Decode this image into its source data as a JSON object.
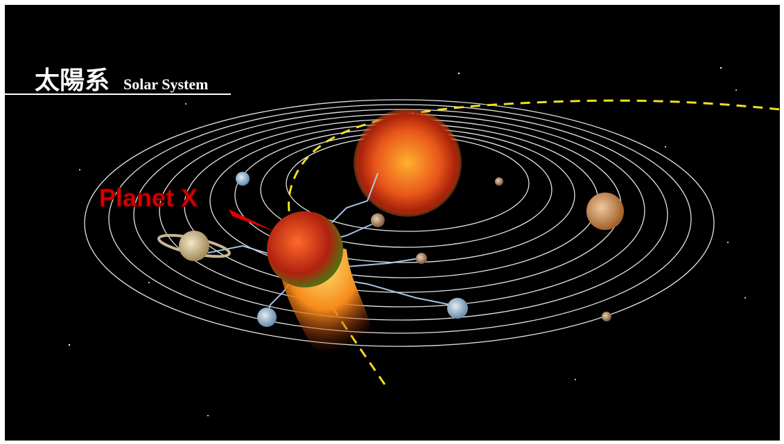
{
  "title": {
    "kanji": "太陽系",
    "english": "Solar System"
  },
  "label": "Planet X"
}
